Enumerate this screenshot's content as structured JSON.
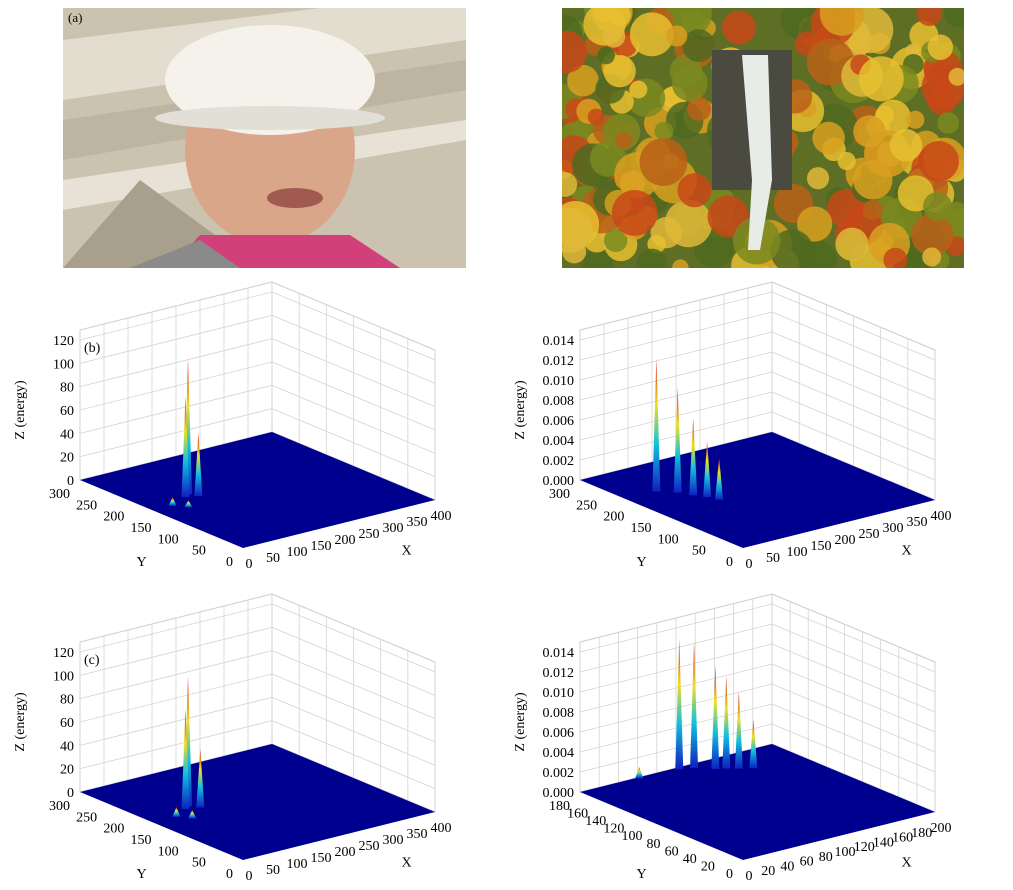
{
  "photo_label": "(a)",
  "plots": [
    {
      "label": "(b)",
      "z_label": "Z (energy)",
      "x_label": "X",
      "y_label": "Y",
      "z_ticks": [
        "0",
        "20",
        "40",
        "60",
        "80",
        "100",
        "120"
      ],
      "y_ticks": [
        "300",
        "250",
        "200",
        "150",
        "100",
        "50",
        "0"
      ],
      "x_ticks": [
        "0",
        "50",
        "100",
        "150",
        "200",
        "250",
        "300",
        "350",
        "400"
      ]
    },
    {
      "z_label": "Z (energy)",
      "x_label": "X",
      "y_label": "Y",
      "z_ticks": [
        "0.000",
        "0.002",
        "0.004",
        "0.006",
        "0.008",
        "0.010",
        "0.012",
        "0.014"
      ],
      "y_ticks": [
        "300",
        "250",
        "200",
        "150",
        "100",
        "50",
        "0"
      ],
      "x_ticks": [
        "0",
        "50",
        "100",
        "150",
        "200",
        "250",
        "300",
        "350",
        "400"
      ]
    },
    {
      "label": "(c)",
      "z_label": "Z (energy)",
      "x_label": "X",
      "y_label": "Y",
      "z_ticks": [
        "0",
        "20",
        "40",
        "60",
        "80",
        "100",
        "120"
      ],
      "y_ticks": [
        "300",
        "250",
        "200",
        "150",
        "100",
        "50",
        "0"
      ],
      "x_ticks": [
        "0",
        "50",
        "100",
        "150",
        "200",
        "250",
        "300",
        "350",
        "400"
      ]
    },
    {
      "z_label": "Z (energy)",
      "x_label": "X",
      "y_label": "Y",
      "z_ticks": [
        "0.000",
        "0.002",
        "0.004",
        "0.006",
        "0.008",
        "0.010",
        "0.012",
        "0.014"
      ],
      "y_ticks": [
        "180",
        "160",
        "140",
        "120",
        "100",
        "80",
        "60",
        "40",
        "20",
        "0"
      ],
      "x_ticks": [
        "0",
        "20",
        "40",
        "60",
        "80",
        "100",
        "120",
        "140",
        "160",
        "180",
        "200"
      ]
    }
  ]
}
